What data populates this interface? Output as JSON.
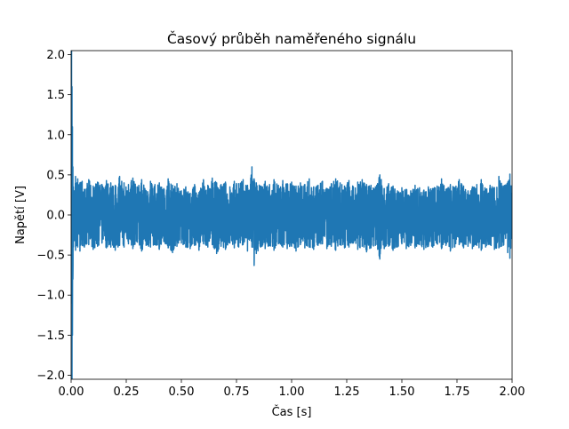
{
  "chart_data": {
    "type": "line",
    "title": "Časový průběh naměřeného signálu",
    "xlabel": "Čas [s]",
    "ylabel": "Napětí [V]",
    "xlim": [
      0.0,
      2.0
    ],
    "ylim": [
      -2.05,
      2.05
    ],
    "xticks": [
      0.0,
      0.25,
      0.5,
      0.75,
      1.0,
      1.25,
      1.5,
      1.75,
      2.0
    ],
    "xtick_labels": [
      "0.00",
      "0.25",
      "0.50",
      "0.75",
      "1.00",
      "1.25",
      "1.50",
      "1.75",
      "2.00"
    ],
    "yticks": [
      -2.0,
      -1.5,
      -1.0,
      -0.5,
      0.0,
      0.5,
      1.0,
      1.5,
      2.0
    ],
    "ytick_labels": [
      "−2.0",
      "−1.5",
      "−1.0",
      "−0.5",
      "0.0",
      "0.5",
      "1.0",
      "1.5",
      "2.0"
    ],
    "grid": false,
    "legend": "none",
    "series": [
      {
        "color": "#1f77b4",
        "envelope": {
          "x": [
            0.0,
            0.002,
            0.004,
            0.006,
            0.008,
            0.01,
            0.015,
            0.02,
            0.03,
            0.04,
            0.05,
            0.06,
            0.08,
            0.1,
            0.12,
            0.14,
            0.16,
            0.18,
            0.2,
            0.22,
            0.24,
            0.26,
            0.28,
            0.3,
            0.32,
            0.34,
            0.36,
            0.38,
            0.4,
            0.42,
            0.44,
            0.46,
            0.48,
            0.5,
            0.52,
            0.54,
            0.56,
            0.58,
            0.6,
            0.62,
            0.64,
            0.66,
            0.68,
            0.7,
            0.72,
            0.74,
            0.76,
            0.78,
            0.8,
            0.82,
            0.83,
            0.84,
            0.86,
            0.88,
            0.9,
            0.92,
            0.94,
            0.96,
            0.98,
            1.0,
            1.02,
            1.04,
            1.06,
            1.08,
            1.1,
            1.12,
            1.14,
            1.16,
            1.18,
            1.2,
            1.22,
            1.24,
            1.26,
            1.28,
            1.3,
            1.32,
            1.34,
            1.36,
            1.38,
            1.4,
            1.42,
            1.44,
            1.46,
            1.48,
            1.5,
            1.52,
            1.54,
            1.56,
            1.58,
            1.6,
            1.62,
            1.64,
            1.66,
            1.68,
            1.7,
            1.72,
            1.74,
            1.76,
            1.78,
            1.8,
            1.82,
            1.84,
            1.86,
            1.88,
            1.9,
            1.92,
            1.94,
            1.96,
            1.98,
            1.99,
            2.0
          ],
          "max": [
            0.2,
            2.05,
            1.6,
            1.1,
            0.6,
            0.35,
            0.3,
            0.48,
            0.45,
            0.4,
            0.42,
            0.32,
            0.44,
            0.36,
            0.41,
            0.38,
            0.43,
            0.4,
            0.37,
            0.48,
            0.4,
            0.38,
            0.46,
            0.35,
            0.44,
            0.3,
            0.42,
            0.38,
            0.4,
            0.33,
            0.45,
            0.37,
            0.39,
            0.3,
            0.35,
            0.27,
            0.38,
            0.28,
            0.44,
            0.37,
            0.46,
            0.4,
            0.38,
            0.41,
            0.35,
            0.42,
            0.39,
            0.44,
            0.37,
            0.6,
            0.45,
            0.4,
            0.36,
            0.42,
            0.38,
            0.44,
            0.37,
            0.43,
            0.39,
            0.41,
            0.36,
            0.4,
            0.38,
            0.45,
            0.35,
            0.37,
            0.42,
            0.33,
            0.39,
            0.45,
            0.4,
            0.36,
            0.43,
            0.35,
            0.41,
            0.44,
            0.38,
            0.37,
            0.35,
            0.5,
            0.33,
            0.39,
            0.36,
            0.3,
            0.34,
            0.32,
            0.3,
            0.37,
            0.34,
            0.31,
            0.35,
            0.33,
            0.36,
            0.45,
            0.32,
            0.38,
            0.34,
            0.44,
            0.36,
            0.3,
            0.35,
            0.38,
            0.44,
            0.32,
            0.37,
            0.34,
            0.48,
            0.36,
            0.4,
            0.51,
            0.27
          ],
          "min": [
            -0.2,
            -1.1,
            -2.05,
            -1.5,
            -0.8,
            -0.4,
            -0.32,
            -0.44,
            -0.4,
            -0.45,
            -0.38,
            -0.4,
            -0.37,
            -0.43,
            -0.39,
            -0.35,
            -0.41,
            -0.4,
            -0.44,
            -0.38,
            -0.4,
            -0.36,
            -0.42,
            -0.34,
            -0.45,
            -0.38,
            -0.4,
            -0.37,
            -0.43,
            -0.33,
            -0.41,
            -0.47,
            -0.39,
            -0.35,
            -0.4,
            -0.42,
            -0.38,
            -0.44,
            -0.36,
            -0.4,
            -0.37,
            -0.48,
            -0.39,
            -0.43,
            -0.35,
            -0.41,
            -0.4,
            -0.37,
            -0.45,
            -0.4,
            -0.63,
            -0.48,
            -0.4,
            -0.42,
            -0.38,
            -0.44,
            -0.36,
            -0.4,
            -0.42,
            -0.39,
            -0.45,
            -0.37,
            -0.41,
            -0.4,
            -0.43,
            -0.38,
            -0.36,
            -0.42,
            -0.39,
            -0.44,
            -0.37,
            -0.41,
            -0.4,
            -0.35,
            -0.43,
            -0.39,
            -0.46,
            -0.41,
            -0.38,
            -0.55,
            -0.42,
            -0.39,
            -0.44,
            -0.4,
            -0.36,
            -0.42,
            -0.38,
            -0.41,
            -0.37,
            -0.43,
            -0.39,
            -0.4,
            -0.36,
            -0.42,
            -0.38,
            -0.45,
            -0.4,
            -0.37,
            -0.41,
            -0.39,
            -0.42,
            -0.38,
            -0.44,
            -0.4,
            -0.37,
            -0.43,
            -0.41,
            -0.38,
            -0.47,
            -0.54,
            -0.3
          ]
        }
      }
    ]
  }
}
